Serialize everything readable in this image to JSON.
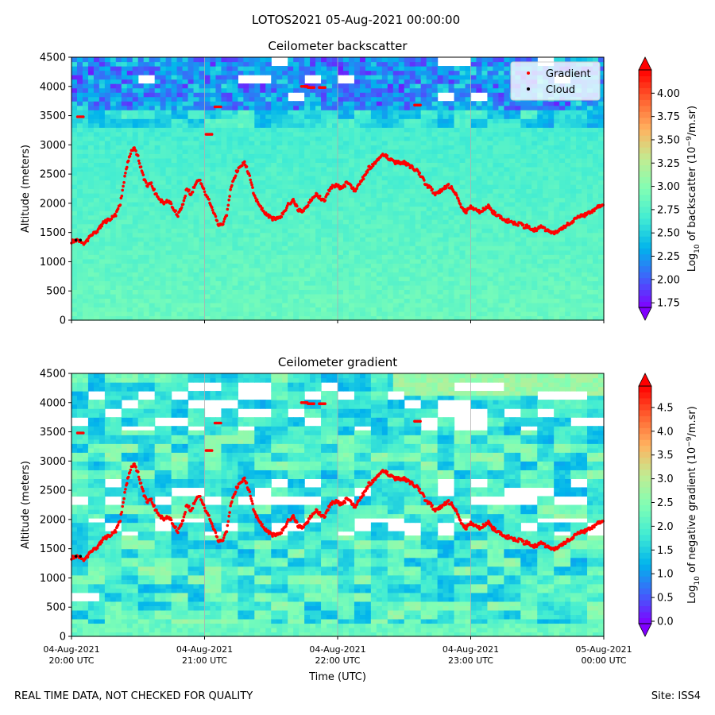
{
  "suptitle": "LOTOS2021 05-Aug-2021 00:00:00",
  "footer": {
    "left": "REAL TIME DATA, NOT CHECKED FOR QUALITY",
    "right": "Site: ISS4"
  },
  "colors": {
    "rainbow": [
      "#8000ff",
      "#4062fa",
      "#01b3ec",
      "#41ecd3",
      "#81feb4",
      "#c1ec92",
      "#ffb360",
      "#ff6130",
      "#ff0000"
    ],
    "gradient_marker": "#ff0000",
    "cloud_marker": "#000000",
    "gridline": "#b0b0b0"
  },
  "chart_data": [
    {
      "type": "heatmap",
      "title": "Ceilometer backscatter",
      "xlabel": "",
      "ylabel": "Altitude (meters)",
      "xlim": [
        0,
        240
      ],
      "ylim": [
        0,
        4500
      ],
      "yticks": [
        0,
        500,
        1000,
        1500,
        2000,
        2500,
        3000,
        3500,
        4000,
        4500
      ],
      "xticks": [
        0,
        60,
        120,
        180,
        240
      ],
      "xticklabels": [],
      "grid": "vertical",
      "colorbar": {
        "label_prefix": "Log",
        "label_sub": "10",
        "label_main": " of backscatter (10",
        "label_sup": "−9",
        "label_end": "/m.sr)",
        "range": [
          1.7,
          4.25
        ],
        "ticks": [
          1.75,
          2.0,
          2.25,
          2.5,
          2.75,
          3.0,
          3.25,
          3.5,
          3.75,
          4.0
        ],
        "ticklabels": [
          "1.75",
          "2.00",
          "2.25",
          "2.50",
          "2.75",
          "3.00",
          "3.25",
          "3.50",
          "3.75",
          "4.00"
        ]
      },
      "legend": {
        "location": "top-right",
        "entries": [
          "Gradient",
          "Cloud"
        ]
      },
      "series": [
        {
          "name": "Gradient",
          "x_minutes": [
            0,
            3,
            6,
            8,
            10,
            12,
            14,
            16,
            18,
            20,
            22,
            24,
            26,
            28,
            30,
            32,
            34,
            36,
            38,
            40,
            42,
            44,
            46,
            48,
            50,
            52,
            54,
            56,
            58,
            60,
            62,
            64,
            66,
            68,
            70,
            72,
            74,
            76,
            78,
            80,
            82,
            84,
            86,
            88,
            90,
            92,
            94,
            96,
            98,
            100,
            102,
            104,
            106,
            108,
            110,
            112,
            114,
            116,
            118,
            120,
            122,
            124,
            126,
            128,
            130,
            132,
            134,
            136,
            138,
            140,
            142,
            144,
            146,
            148,
            150,
            152,
            154,
            156,
            158,
            160,
            162,
            164,
            166,
            168,
            170,
            172,
            174,
            176,
            178,
            180,
            182,
            184,
            186,
            188,
            190,
            192,
            194,
            196,
            198,
            200,
            202,
            204,
            206,
            208,
            210,
            212,
            214,
            216,
            218,
            220,
            222,
            224,
            226,
            228,
            230,
            232,
            234,
            236,
            238,
            240
          ],
          "altitude_m": [
            1350,
            1380,
            1300,
            1420,
            1480,
            1550,
            1650,
            1700,
            1750,
            1800,
            2000,
            2450,
            2800,
            2950,
            2800,
            2500,
            2300,
            2350,
            2150,
            2050,
            2000,
            2050,
            1900,
            1800,
            1950,
            2250,
            2150,
            2350,
            2400,
            2200,
            2050,
            1850,
            1650,
            1620,
            1800,
            2300,
            2500,
            2650,
            2700,
            2500,
            2200,
            2000,
            1900,
            1800,
            1750,
            1720,
            1750,
            1850,
            2000,
            2050,
            1900,
            1850,
            1950,
            2050,
            2150,
            2100,
            2050,
            2200,
            2300,
            2300,
            2250,
            2350,
            2300,
            2200,
            2350,
            2450,
            2600,
            2650,
            2750,
            2850,
            2800,
            2750,
            2700,
            2700,
            2700,
            2650,
            2600,
            2550,
            2450,
            2300,
            2250,
            2150,
            2200,
            2250,
            2300,
            2250,
            2100,
            1900,
            1850,
            1950,
            1900,
            1850,
            1900,
            1950,
            1850,
            1800,
            1750,
            1700,
            1700,
            1650,
            1650,
            1600,
            1600,
            1550,
            1550,
            1600,
            1550,
            1500,
            1500,
            1550,
            1600,
            1650,
            1700,
            1750,
            1800,
            1800,
            1850,
            1900,
            1950,
            1950
          ]
        },
        {
          "name": "Gradient (clusters)",
          "x_minutes": [
            4,
            62,
            66,
            105,
            108,
            113,
            156
          ],
          "altitude_m": [
            3480,
            3180,
            3650,
            4000,
            3980,
            3980,
            3680
          ]
        },
        {
          "name": "Cloud",
          "x_minutes": [
            2,
            4
          ],
          "altitude_m": [
            1370,
            1370
          ]
        }
      ]
    },
    {
      "type": "heatmap",
      "title": "Ceilometer gradient",
      "xlabel": "Time (UTC)",
      "ylabel": "Altitude (meters)",
      "xlim": [
        0,
        240
      ],
      "ylim": [
        0,
        4500
      ],
      "yticks": [
        0,
        500,
        1000,
        1500,
        2000,
        2500,
        3000,
        3500,
        4000,
        4500
      ],
      "xticks": [
        0,
        60,
        120,
        180,
        240
      ],
      "xticklabels": [
        [
          "04-Aug-2021",
          "20:00 UTC"
        ],
        [
          "04-Aug-2021",
          "21:00 UTC"
        ],
        [
          "04-Aug-2021",
          "22:00 UTC"
        ],
        [
          "04-Aug-2021",
          "23:00 UTC"
        ],
        [
          "05-Aug-2021",
          "00:00 UTC"
        ]
      ],
      "grid": "vertical",
      "colorbar": {
        "label_prefix": "Log",
        "label_sub": "10",
        "label_main": " of negative gradient (10",
        "label_sup": "−9",
        "label_end": "/m.sr)",
        "range": [
          -0.05,
          4.95
        ],
        "ticks": [
          0.0,
          0.5,
          1.0,
          1.5,
          2.0,
          2.5,
          3.0,
          3.5,
          4.0,
          4.5
        ],
        "ticklabels": [
          "0.0",
          "0.5",
          "1.0",
          "1.5",
          "2.0",
          "2.5",
          "3.0",
          "3.5",
          "4.0",
          "4.5"
        ]
      }
    }
  ]
}
